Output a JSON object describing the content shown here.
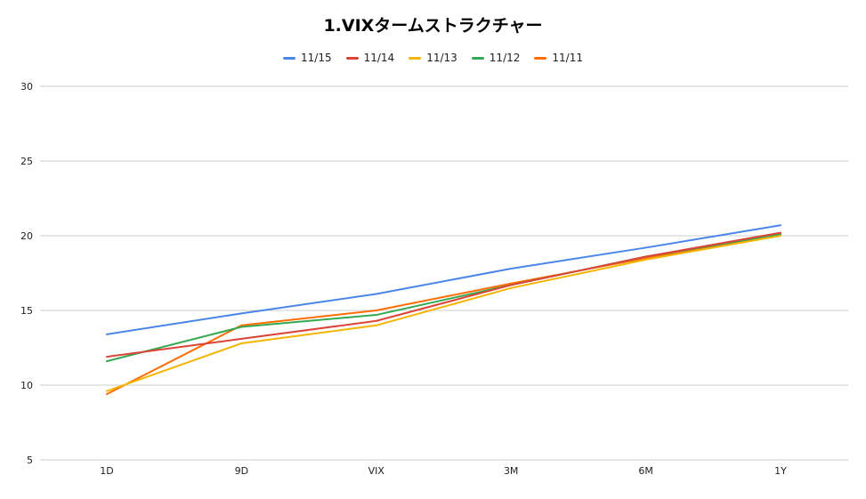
{
  "chart_data": {
    "type": "line",
    "title": "1.VIXタームストラクチャー",
    "xlabel": "",
    "ylabel": "",
    "categories": [
      "1D",
      "9D",
      "VIX",
      "3M",
      "6M",
      "1Y"
    ],
    "ylim": [
      5,
      30
    ],
    "yticks": [
      5,
      10,
      15,
      20,
      25,
      30
    ],
    "grid": true,
    "legend_position": "top",
    "series": [
      {
        "name": "11/15",
        "color": "#4a86e8",
        "values": [
          13.4,
          14.8,
          16.1,
          17.8,
          19.2,
          20.7
        ]
      },
      {
        "name": "11/14",
        "color": "#db4437",
        "values": [
          11.9,
          13.1,
          14.3,
          16.7,
          18.6,
          20.2
        ]
      },
      {
        "name": "11/13",
        "color": "#f4b400",
        "values": [
          9.6,
          12.8,
          14.0,
          16.5,
          18.4,
          20.0
        ]
      },
      {
        "name": "11/12",
        "color": "#34a853",
        "values": [
          11.6,
          13.9,
          14.7,
          16.7,
          18.6,
          20.1
        ]
      },
      {
        "name": "11/11",
        "color": "#ff6d01",
        "values": [
          9.4,
          14.0,
          15.0,
          16.8,
          18.5,
          20.1
        ]
      }
    ]
  }
}
